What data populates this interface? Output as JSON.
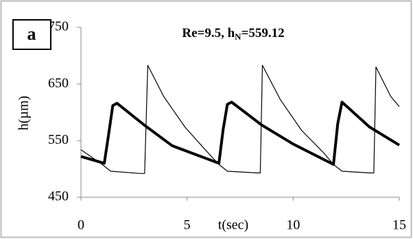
{
  "chart_data": {
    "type": "line",
    "panel_label": "a",
    "title": [
      "Re=9.5, h",
      "N",
      "=559.12"
    ],
    "x_label": "t(sec)",
    "y_label": "h(µm)",
    "xlim": [
      0,
      15
    ],
    "xticks": [
      0,
      5,
      10,
      15
    ],
    "ylim": [
      450,
      750
    ],
    "yticks": [
      450,
      550,
      650,
      750
    ],
    "series": [
      {
        "color": "#000000",
        "linewidth": 4,
        "x": [
          0,
          1.1,
          1.3,
          1.5,
          1.7,
          3,
          4.3,
          5.5,
          6.5,
          6.7,
          6.9,
          7.1,
          8.5,
          10,
          11.9,
          12.1,
          12.3,
          13.6,
          15
        ],
        "values": [
          522,
          510,
          560,
          612,
          616,
          577,
          541,
          524,
          510,
          570,
          614,
          618,
          578,
          544,
          508,
          580,
          618,
          574,
          542
        ]
      },
      {
        "color": "#000000",
        "linewidth": 1.2,
        "x": [
          0,
          1,
          1.4,
          2.8,
          3.0,
          3.15,
          3.9,
          4.9,
          5.9,
          6.5,
          6.9,
          8.3,
          8.45,
          8.55,
          9.4,
          10.4,
          11.4,
          11.9,
          12.3,
          13.6,
          13.8,
          13.9,
          14.6,
          15
        ],
        "values": [
          534,
          508,
          496,
          492,
          492,
          683,
          628,
          574,
          532,
          508,
          496,
          493,
          493,
          683,
          622,
          568,
          530,
          508,
          496,
          493,
          493,
          680,
          628,
          610
        ]
      }
    ]
  }
}
